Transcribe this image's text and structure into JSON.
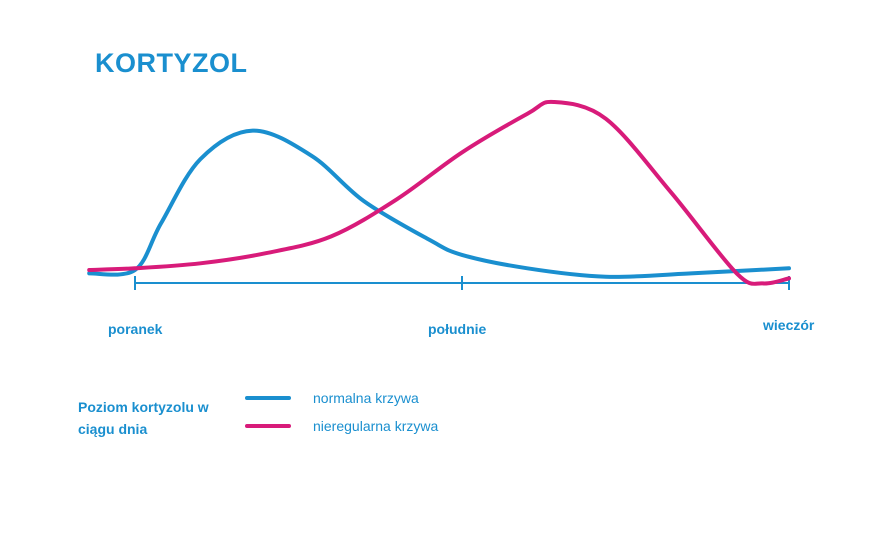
{
  "chart_data": {
    "type": "line",
    "title": "KORTYZOL",
    "x_ticks": [
      "poranek",
      "południe",
      "wieczór"
    ],
    "xlim": [
      0,
      100
    ],
    "ylim": [
      0,
      100
    ],
    "grid": false,
    "legend": {
      "title": "Poziom kortyzolu w ciągu dnia",
      "placement": "bottom-left"
    },
    "series": [
      {
        "name": "normalna krzywa",
        "color": "#1a8fcf",
        "x": [
          -7,
          0,
          4,
          10,
          18,
          27,
          35,
          45,
          50,
          60,
          72,
          85,
          95,
          100
        ],
        "y": [
          -2,
          0,
          28,
          66,
          83,
          68,
          41,
          18,
          9,
          1,
          -4,
          -2,
          0,
          1
        ]
      },
      {
        "name": "nieregularna krzywa",
        "color": "#d81b7a",
        "x": [
          -7,
          0,
          10,
          20,
          30,
          40,
          50,
          60,
          64,
          72,
          82,
          92,
          96,
          100
        ],
        "y": [
          0,
          1,
          4,
          10,
          20,
          42,
          70,
          93,
          100,
          90,
          46,
          -2,
          -8,
          -5
        ]
      }
    ]
  }
}
